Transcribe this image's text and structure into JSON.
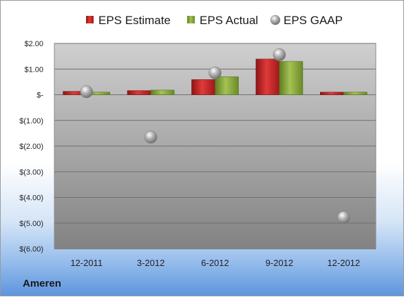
{
  "company": "Ameren",
  "chart_data": {
    "type": "bar",
    "categories": [
      "12-2011",
      "3-2012",
      "6-2012",
      "9-2012",
      "12-2012"
    ],
    "series": [
      {
        "name": "EPS Estimate",
        "kind": "bar",
        "color": "#cc2222",
        "values": [
          0.13,
          0.16,
          0.59,
          1.39,
          0.1
        ]
      },
      {
        "name": "EPS Actual",
        "kind": "bar",
        "color": "#88a83a",
        "values": [
          0.1,
          0.18,
          0.7,
          1.3,
          0.1
        ]
      },
      {
        "name": "EPS GAAP",
        "kind": "marker",
        "color": "#a8a8a8",
        "values": [
          0.12,
          -1.65,
          0.85,
          1.56,
          -4.78
        ]
      }
    ],
    "ylim": [
      -6,
      2
    ],
    "ytick_values": [
      2,
      1,
      0,
      -1,
      -2,
      -3,
      -4,
      -5,
      -6
    ],
    "ytick_labels": [
      "$2.00",
      "$1.00",
      "$-",
      "$(1.00)",
      "$(2.00)",
      "$(3.00)",
      "$(4.00)",
      "$(5.00)",
      "$(6.00)"
    ],
    "grid": true,
    "legend_position": "top"
  }
}
